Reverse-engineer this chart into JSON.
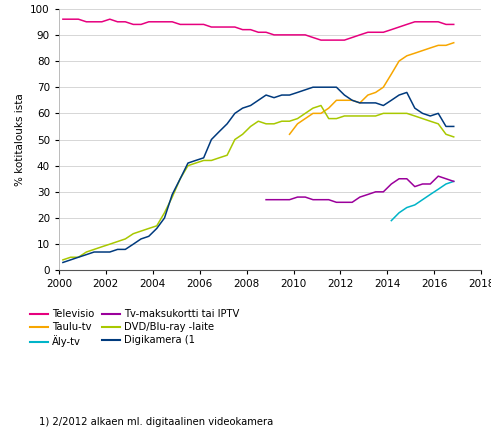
{
  "ylabel": "% kotitalouks ista",
  "xlim": [
    2000,
    2018
  ],
  "ylim": [
    0,
    100
  ],
  "yticks": [
    0,
    10,
    20,
    30,
    40,
    50,
    60,
    70,
    80,
    90,
    100
  ],
  "xticks": [
    2000,
    2002,
    2004,
    2006,
    2008,
    2010,
    2012,
    2014,
    2016,
    2018
  ],
  "footnote": "1) 2/2012 alkaen ml. digitaalinen videokamera",
  "legend_order": [
    "Televisio",
    "Taulu-tv",
    "Äly-tv",
    "Tv-maksukortti tai IPTV",
    "DVD/Blu-ray -laite",
    "Digikamera (1"
  ],
  "legend_colors": [
    "#e6007e",
    "#f7a600",
    "#00b4c8",
    "#9b009b",
    "#a8c800",
    "#003a7d"
  ],
  "series": {
    "televisio": {
      "color": "#e6007e",
      "x": [
        2000.17,
        2000.5,
        2000.83,
        2001.17,
        2001.5,
        2001.83,
        2002.17,
        2002.5,
        2002.83,
        2003.17,
        2003.5,
        2003.83,
        2004.17,
        2004.5,
        2004.83,
        2005.17,
        2005.5,
        2005.83,
        2006.17,
        2006.5,
        2006.83,
        2007.17,
        2007.5,
        2007.83,
        2008.17,
        2008.5,
        2008.83,
        2009.17,
        2009.5,
        2009.83,
        2010.17,
        2010.5,
        2010.83,
        2011.17,
        2011.5,
        2011.83,
        2012.17,
        2012.5,
        2012.83,
        2013.17,
        2013.5,
        2013.83,
        2014.17,
        2014.5,
        2014.83,
        2015.17,
        2015.5,
        2015.83,
        2016.17,
        2016.5,
        2016.83
      ],
      "y": [
        96,
        96,
        96,
        95,
        95,
        95,
        96,
        95,
        95,
        94,
        94,
        95,
        95,
        95,
        95,
        94,
        94,
        94,
        94,
        93,
        93,
        93,
        93,
        92,
        92,
        91,
        91,
        90,
        90,
        90,
        90,
        90,
        89,
        88,
        88,
        88,
        88,
        89,
        90,
        91,
        91,
        91,
        92,
        93,
        94,
        95,
        95,
        95,
        95,
        94,
        94
      ]
    },
    "taulu_tv": {
      "color": "#f7a600",
      "x": [
        2009.83,
        2010.17,
        2010.5,
        2010.83,
        2011.17,
        2011.5,
        2011.83,
        2012.17,
        2012.5,
        2012.83,
        2013.17,
        2013.5,
        2013.83,
        2014.17,
        2014.5,
        2014.83,
        2015.17,
        2015.5,
        2015.83,
        2016.17,
        2016.5,
        2016.83
      ],
      "y": [
        52,
        56,
        58,
        60,
        60,
        62,
        65,
        65,
        65,
        64,
        67,
        68,
        70,
        75,
        80,
        82,
        83,
        84,
        85,
        86,
        86,
        87
      ]
    },
    "aly_tv": {
      "color": "#00b4c8",
      "x": [
        2014.17,
        2014.5,
        2014.83,
        2015.17,
        2015.5,
        2015.83,
        2016.17,
        2016.5,
        2016.83
      ],
      "y": [
        19,
        22,
        24,
        25,
        27,
        29,
        31,
        33,
        34
      ]
    },
    "tv_maksukortti": {
      "color": "#9b009b",
      "x": [
        2008.83,
        2009.17,
        2009.5,
        2009.83,
        2010.17,
        2010.5,
        2010.83,
        2011.17,
        2011.5,
        2011.83,
        2012.17,
        2012.5,
        2012.83,
        2013.17,
        2013.5,
        2013.83,
        2014.17,
        2014.5,
        2014.83,
        2015.17,
        2015.5,
        2015.83,
        2016.17,
        2016.5,
        2016.83
      ],
      "y": [
        27,
        27,
        27,
        27,
        28,
        28,
        27,
        27,
        27,
        26,
        26,
        26,
        28,
        29,
        30,
        30,
        33,
        35,
        35,
        32,
        33,
        33,
        36,
        35,
        34
      ]
    },
    "dvd_bluray": {
      "color": "#a8c800",
      "x": [
        2000.17,
        2000.5,
        2000.83,
        2001.17,
        2001.5,
        2001.83,
        2002.17,
        2002.5,
        2002.83,
        2003.17,
        2003.5,
        2003.83,
        2004.17,
        2004.5,
        2004.83,
        2005.17,
        2005.5,
        2005.83,
        2006.17,
        2006.5,
        2006.83,
        2007.17,
        2007.5,
        2007.83,
        2008.17,
        2008.5,
        2008.83,
        2009.17,
        2009.5,
        2009.83,
        2010.17,
        2010.5,
        2010.83,
        2011.17,
        2011.5,
        2011.83,
        2012.17,
        2012.5,
        2012.83,
        2013.17,
        2013.5,
        2013.83,
        2014.17,
        2014.5,
        2014.83,
        2015.17,
        2015.5,
        2015.83,
        2016.17,
        2016.5,
        2016.83
      ],
      "y": [
        4,
        5,
        5,
        7,
        8,
        9,
        10,
        11,
        12,
        14,
        15,
        16,
        17,
        22,
        28,
        35,
        40,
        41,
        42,
        42,
        43,
        44,
        50,
        52,
        55,
        57,
        56,
        56,
        57,
        57,
        58,
        60,
        62,
        63,
        58,
        58,
        59,
        59,
        59,
        59,
        59,
        60,
        60,
        60,
        60,
        59,
        58,
        57,
        56,
        52,
        51
      ]
    },
    "digikamera": {
      "color": "#003a7d",
      "x": [
        2000.17,
        2000.5,
        2000.83,
        2001.17,
        2001.5,
        2001.83,
        2002.17,
        2002.5,
        2002.83,
        2003.17,
        2003.5,
        2003.83,
        2004.17,
        2004.5,
        2004.83,
        2005.17,
        2005.5,
        2005.83,
        2006.17,
        2006.5,
        2006.83,
        2007.17,
        2007.5,
        2007.83,
        2008.17,
        2008.5,
        2008.83,
        2009.17,
        2009.5,
        2009.83,
        2010.17,
        2010.5,
        2010.83,
        2011.17,
        2011.5,
        2011.83,
        2012.17,
        2012.5,
        2012.83,
        2013.17,
        2013.5,
        2013.83,
        2014.17,
        2014.5,
        2014.83,
        2015.17,
        2015.5,
        2015.83,
        2016.17,
        2016.5,
        2016.83
      ],
      "y": [
        3,
        4,
        5,
        6,
        7,
        7,
        7,
        8,
        8,
        10,
        12,
        13,
        16,
        20,
        29,
        35,
        41,
        42,
        43,
        50,
        53,
        56,
        60,
        62,
        63,
        65,
        67,
        66,
        67,
        67,
        68,
        69,
        70,
        70,
        70,
        70,
        67,
        65,
        64,
        64,
        64,
        63,
        65,
        67,
        68,
        62,
        60,
        59,
        60,
        55,
        55
      ]
    }
  }
}
